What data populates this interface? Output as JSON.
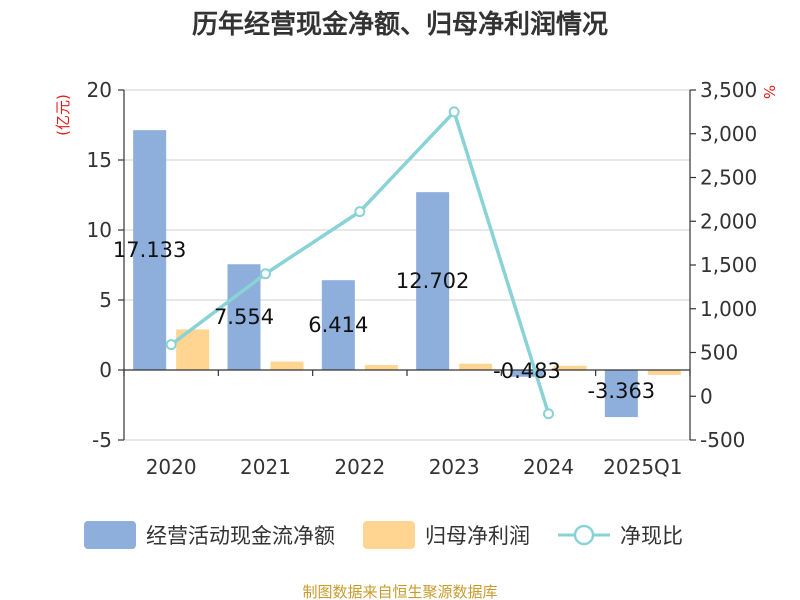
{
  "chart_data": {
    "type": "bar",
    "title": "历年经营现金净额、归母净利润情况",
    "categories": [
      "2020",
      "2021",
      "2022",
      "2023",
      "2024",
      "2025Q1"
    ],
    "series": [
      {
        "name": "经营活动现金流净额",
        "type": "bar",
        "axis": "left",
        "color": "#8eaedc",
        "values": [
          17.133,
          7.554,
          6.414,
          12.702,
          -0.483,
          -3.363
        ],
        "labels": [
          "17.133",
          "7.554",
          "6.414",
          "12.702",
          "-0.483",
          "-3.363"
        ]
      },
      {
        "name": "归母净利润",
        "type": "bar",
        "axis": "left",
        "color": "#ffd591",
        "values": [
          2.9,
          0.6,
          0.35,
          0.45,
          0.3,
          -0.35
        ]
      },
      {
        "name": "净现比",
        "type": "line",
        "axis": "right",
        "color": "#89d3d6",
        "values": [
          590,
          1400,
          2110,
          3250,
          -200,
          null
        ]
      }
    ],
    "yleft": {
      "label": "(亿元)",
      "min": -5,
      "max": 20,
      "ticks": [
        "-5",
        "0",
        "5",
        "10",
        "15",
        "20"
      ]
    },
    "yright": {
      "label": "%",
      "min": -500,
      "max": 3500,
      "ticks": [
        "-500",
        "0",
        "500",
        "1,000",
        "1,500",
        "2,000",
        "2,500",
        "3,000",
        "3,500"
      ]
    },
    "grid": true,
    "legend_position": "bottom",
    "unit_color": "#e0201b"
  },
  "source": "制图数据来自恒生聚源数据库",
  "source_color": "#c99b2b"
}
